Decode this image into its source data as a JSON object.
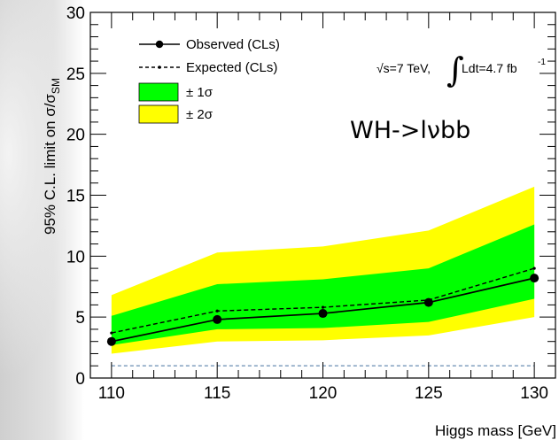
{
  "chart_data": {
    "type": "line",
    "x": [
      110,
      115,
      120,
      125,
      130
    ],
    "series": [
      {
        "name": "Observed (CLs)",
        "values": [
          3.0,
          4.8,
          5.3,
          6.2,
          8.2
        ],
        "color": "#000000",
        "style": "solid-with-markers"
      },
      {
        "name": "Expected (CLs)",
        "values": [
          3.7,
          5.5,
          5.8,
          6.4,
          9.0
        ],
        "color": "#000000",
        "style": "dashed"
      },
      {
        "name": "± 1σ",
        "type": "band",
        "low": [
          2.7,
          4.0,
          4.1,
          4.6,
          6.5
        ],
        "high": [
          5.1,
          7.7,
          8.1,
          9.0,
          12.6
        ],
        "color": "#00ff00"
      },
      {
        "name": "± 2σ",
        "type": "band",
        "low": [
          2.0,
          3.0,
          3.1,
          3.5,
          5.0
        ],
        "high": [
          6.8,
          10.3,
          10.8,
          12.1,
          15.7
        ],
        "color": "#ffff00"
      },
      {
        "name": "",
        "type": "reference",
        "values": [
          1,
          1,
          1,
          1,
          1
        ],
        "color": "#8aa7c4",
        "style": "dashed"
      }
    ],
    "xlabel": "Higgs mass [GeV]",
    "ylabel": "95% C.L. limit on σ/σSM",
    "ylabel_main": "95% C.L. limit on σ/σ",
    "ylabel_sub": "SM",
    "xlim": [
      109,
      131
    ],
    "ylim": [
      0,
      30
    ],
    "xticks": [
      "110",
      "115",
      "120",
      "125",
      "130"
    ],
    "yticks": [
      "0",
      "5",
      "10",
      "15",
      "20",
      "25",
      "30"
    ],
    "legend_position": "top-left",
    "annotations": {
      "energy": "√s=7 TeV,",
      "lumi_integral": "∫",
      "lumi_text": "Ldt=4.7 fb",
      "lumi_exp": "-1",
      "channel": "WH->lνbb"
    },
    "grid": false
  }
}
